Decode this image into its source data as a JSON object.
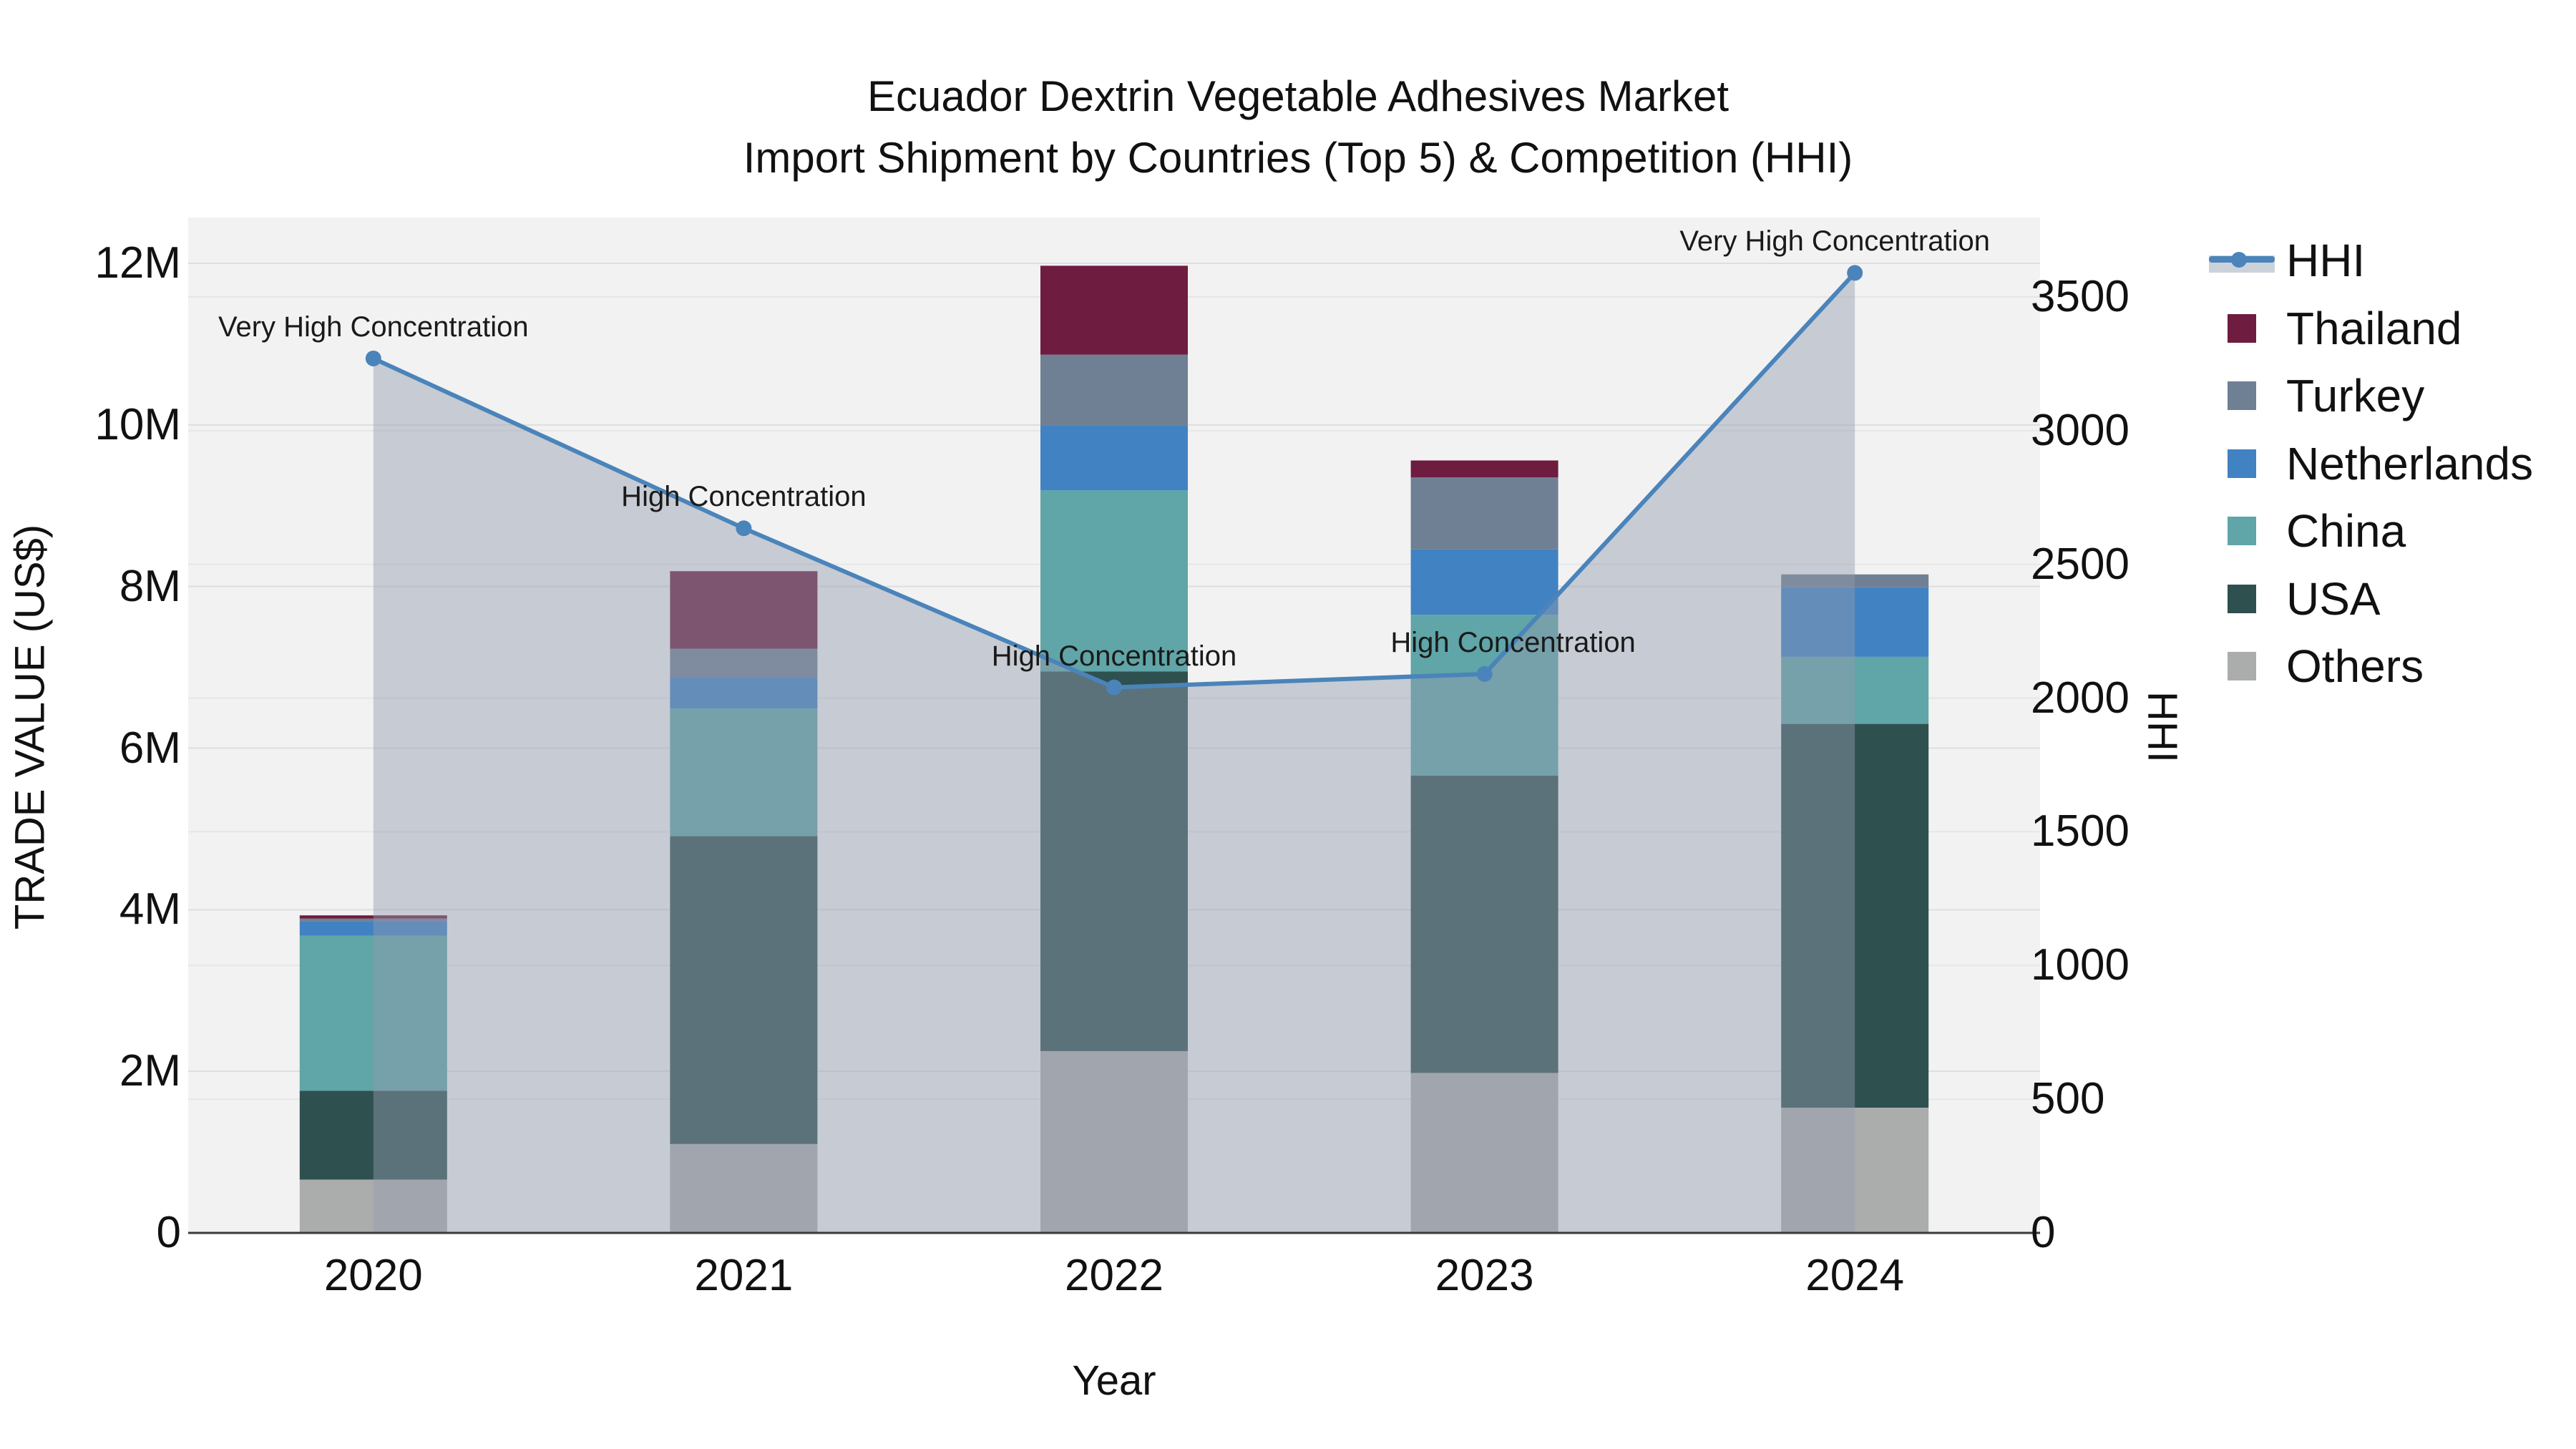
{
  "title": {
    "line1": "Ecuador Dextrin Vegetable Adhesives Market",
    "line2": "Import Shipment by Countries (Top 5) & Competition (HHI)"
  },
  "axes": {
    "x": {
      "title": "Year"
    },
    "y_left": {
      "title": "TRADE VALUE (US$)",
      "ticks": [
        {
          "label": "0",
          "value": 0
        },
        {
          "label": "2M",
          "value": 2
        },
        {
          "label": "4M",
          "value": 4
        },
        {
          "label": "6M",
          "value": 6
        },
        {
          "label": "8M",
          "value": 8
        },
        {
          "label": "10M",
          "value": 10
        },
        {
          "label": "12M",
          "value": 12
        }
      ]
    },
    "y_right": {
      "title": "HHI",
      "ticks": [
        {
          "label": "0",
          "value": 0
        },
        {
          "label": "500",
          "value": 500
        },
        {
          "label": "1000",
          "value": 1000
        },
        {
          "label": "1500",
          "value": 1500
        },
        {
          "label": "2000",
          "value": 2000
        },
        {
          "label": "2500",
          "value": 2500
        },
        {
          "label": "3000",
          "value": 3000
        },
        {
          "label": "3500",
          "value": 3500
        }
      ]
    }
  },
  "legend": {
    "items": [
      {
        "label": "HHI",
        "type": "line",
        "color": "#4a84ba"
      },
      {
        "label": "Thailand",
        "type": "swatch",
        "color": "#6e1c3f"
      },
      {
        "label": "Turkey",
        "type": "swatch",
        "color": "#6f8094"
      },
      {
        "label": "Netherlands",
        "type": "swatch",
        "color": "#4182c2"
      },
      {
        "label": "China",
        "type": "swatch",
        "color": "#60a5a7"
      },
      {
        "label": "USA",
        "type": "swatch",
        "color": "#2e504f"
      },
      {
        "label": "Others",
        "type": "swatch",
        "color": "#abadad"
      }
    ]
  },
  "chart_data": {
    "type": "combo-stacked-bar-with-line-area",
    "title": "Ecuador Dextrin Vegetable Adhesives Market — Import Shipment by Countries (Top 5) & Competition (HHI)",
    "categories": [
      "2020",
      "2021",
      "2022",
      "2023",
      "2024"
    ],
    "bar_value_unit": "Trade value, millions of US$",
    "bar_stack_order_bottom_to_top": [
      "Others",
      "USA",
      "China",
      "Netherlands",
      "Turkey",
      "Thailand"
    ],
    "series": [
      {
        "name": "Others",
        "color": "#abadad",
        "values": [
          0.66,
          1.1,
          2.25,
          1.98,
          1.55
        ]
      },
      {
        "name": "USA",
        "color": "#2e504f",
        "values": [
          1.1,
          3.81,
          4.7,
          3.68,
          4.75
        ]
      },
      {
        "name": "China",
        "color": "#60a5a7",
        "values": [
          1.92,
          1.58,
          2.24,
          1.99,
          0.83
        ]
      },
      {
        "name": "Netherlands",
        "color": "#4182c2",
        "values": [
          0.18,
          0.39,
          0.8,
          0.81,
          0.86
        ]
      },
      {
        "name": "Turkey",
        "color": "#6f8094",
        "values": [
          0.03,
          0.35,
          0.88,
          0.89,
          0.16
        ]
      },
      {
        "name": "Thailand",
        "color": "#6e1c3f",
        "values": [
          0.04,
          0.96,
          1.1,
          0.21,
          0.0
        ]
      }
    ],
    "line_series": {
      "name": "HHI",
      "axis": "right",
      "color": "#4a84ba",
      "area_fill": "rgba(146,156,176,0.45)",
      "values": [
        3270,
        2635,
        2040,
        2090,
        3590
      ]
    },
    "annotations": [
      {
        "category": "2020",
        "text": "Very High Concentration"
      },
      {
        "category": "2021",
        "text": "High Concentration"
      },
      {
        "category": "2022",
        "text": "High Concentration"
      },
      {
        "category": "2023",
        "text": "High Concentration"
      },
      {
        "category": "2024",
        "text": "Very High Concentration"
      }
    ],
    "xlabel": "Year",
    "ylabel_left": "TRADE VALUE (US$)",
    "ylabel_right": "HHI",
    "ylim_left_millions": [
      0,
      12.57
    ],
    "ylim_right": [
      0,
      3797
    ],
    "grid": true,
    "legend_position": "right"
  },
  "style": {
    "plot_bg": "#f2f2f2",
    "grid_color": "#dedede",
    "axis_line_color": "#3a3a3a",
    "text_color": "#111111"
  }
}
